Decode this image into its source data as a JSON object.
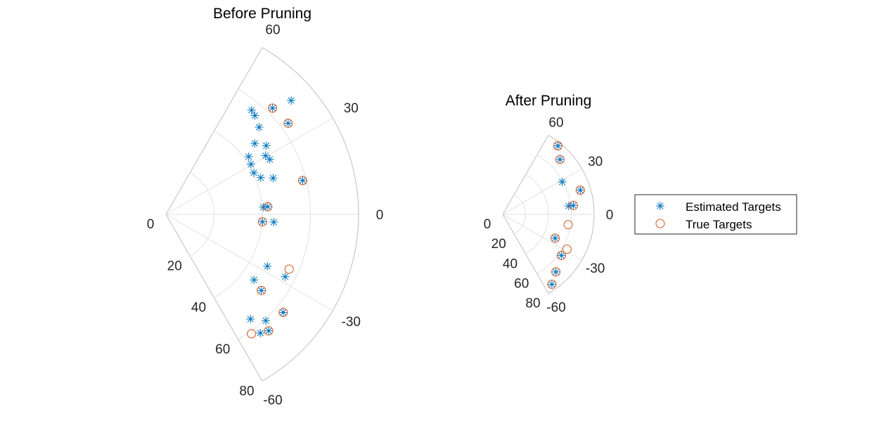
{
  "chart_data": [
    {
      "type": "scatter",
      "coordinate_system": "polar",
      "title": "Before Pruning",
      "theta_range_deg": [
        -60,
        60
      ],
      "r_range": [
        0,
        80
      ],
      "theta_ticks": [
        60,
        30,
        0,
        -30,
        -60
      ],
      "r_ticks": [
        0,
        20,
        40,
        60,
        80
      ],
      "grid": true,
      "series": [
        {
          "name": "Estimated Targets",
          "marker": "asterisk",
          "color": "#0072BD",
          "points": [
            {
              "r": 70.3,
              "theta": 42.3
            },
            {
              "r": 62.5,
              "theta": 44.9
            },
            {
              "r": 63.3,
              "theta": 36.7
            },
            {
              "r": 56.0,
              "theta": 50.6
            },
            {
              "r": 55.2,
              "theta": 48.0
            },
            {
              "r": 53.0,
              "theta": 43.1
            },
            {
              "r": 50.5,
              "theta": 34.4
            },
            {
              "r": 47.2,
              "theta": 38.6
            },
            {
              "r": 48.8,
              "theta": 27.9
            },
            {
              "r": 41.9,
              "theta": 34.9
            },
            {
              "r": 40.4,
              "theta": 25.3
            },
            {
              "r": 41.0,
              "theta": 30.5
            },
            {
              "r": 48.0,
              "theta": 30.5
            },
            {
              "r": 58.5,
              "theta": 13.9
            },
            {
              "r": 42.2,
              "theta": 21.2
            },
            {
              "r": 47.0,
              "theta": 18.7
            },
            {
              "r": 63.5,
              "theta": -39.9
            },
            {
              "r": 50.7,
              "theta": -38.6
            },
            {
              "r": 60.6,
              "theta": -46.8
            },
            {
              "r": 63.0,
              "theta": -51.5
            },
            {
              "r": 55.9,
              "theta": -51.1
            },
            {
              "r": 64.5,
              "theta": -48.6
            },
            {
              "r": 40.5,
              "theta": 4.2
            },
            {
              "r": 42.4,
              "theta": 4.3
            },
            {
              "r": 40.2,
              "theta": -4.4
            },
            {
              "r": 44.9,
              "theta": -4.1
            },
            {
              "r": 55.9,
              "theta": -27.6
            },
            {
              "r": 47.3,
              "theta": -27.1
            },
            {
              "r": 45.6,
              "theta": -36.7
            }
          ]
        },
        {
          "name": "True Targets",
          "marker": "circle",
          "color": "#D95319",
          "points": [
            {
              "r": 62.5,
              "theta": 44.9
            },
            {
              "r": 63.3,
              "theta": 36.7
            },
            {
              "r": 58.5,
              "theta": 13.9
            },
            {
              "r": 42.4,
              "theta": 4.3
            },
            {
              "r": 40.2,
              "theta": -4.4
            },
            {
              "r": 50.7,
              "theta": -38.6
            },
            {
              "r": 56.0,
              "theta": -24.0
            },
            {
              "r": 63.5,
              "theta": -39.9
            },
            {
              "r": 64.5,
              "theta": -48.6
            },
            {
              "r": 61.0,
              "theta": -54.4
            }
          ]
        }
      ]
    },
    {
      "type": "scatter",
      "coordinate_system": "polar",
      "title": "After Pruning",
      "theta_range_deg": [
        -60,
        60
      ],
      "r_range": [
        0,
        80
      ],
      "theta_ticks": [
        60,
        30,
        0,
        -30,
        -60
      ],
      "r_ticks": [
        0,
        20,
        40,
        60,
        80
      ],
      "grid": true,
      "series": [
        {
          "name": "Estimated Targets",
          "marker": "asterisk",
          "color": "#0072BD",
          "points": [
            {
              "r": 77.0,
              "theta": 51.2
            },
            {
              "r": 69.4,
              "theta": 43.8
            },
            {
              "r": 59.3,
              "theta": 28.6
            },
            {
              "r": 71.1,
              "theta": 17.3
            },
            {
              "r": 58.2,
              "theta": 7.2
            },
            {
              "r": 62.3,
              "theta": 7.2
            },
            {
              "r": 50.4,
              "theta": -24.5
            },
            {
              "r": 62.7,
              "theta": -35.1
            },
            {
              "r": 68.6,
              "theta": -47.3
            },
            {
              "r": 74.8,
              "theta": -54.9
            }
          ]
        },
        {
          "name": "True Targets",
          "marker": "circle",
          "color": "#D95319",
          "points": [
            {
              "r": 77.0,
              "theta": 51.2
            },
            {
              "r": 69.4,
              "theta": 43.8
            },
            {
              "r": 71.1,
              "theta": 17.3
            },
            {
              "r": 62.3,
              "theta": 7.2
            },
            {
              "r": 58.0,
              "theta": -9.0
            },
            {
              "r": 50.4,
              "theta": -24.5
            },
            {
              "r": 62.7,
              "theta": -35.1
            },
            {
              "r": 64.0,
              "theta": -28.5
            },
            {
              "r": 68.6,
              "theta": -47.3
            },
            {
              "r": 74.8,
              "theta": -54.9
            }
          ]
        }
      ]
    }
  ],
  "legend": {
    "placement": "right",
    "entries": [
      "Estimated Targets",
      "True Targets"
    ]
  }
}
